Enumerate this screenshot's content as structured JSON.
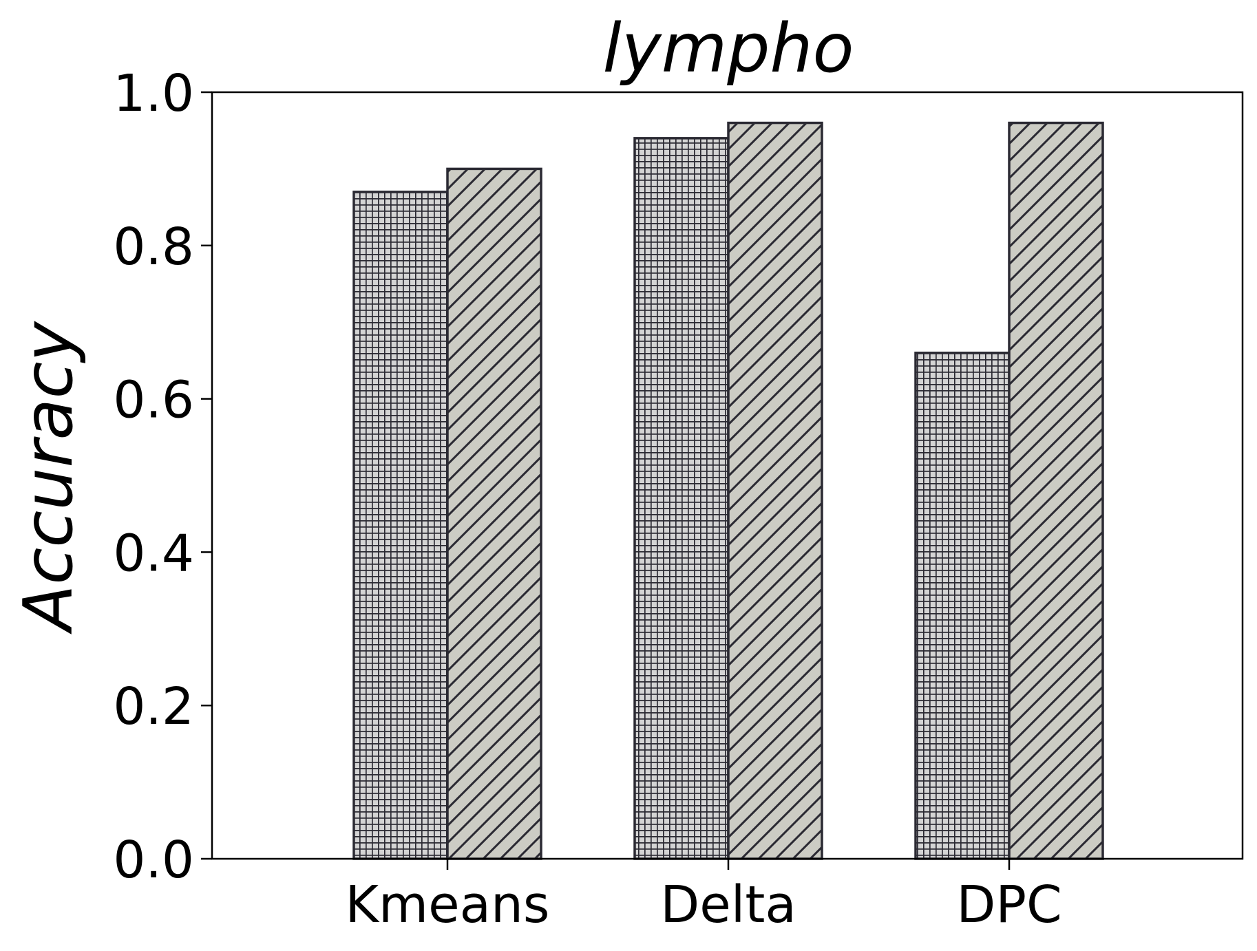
{
  "chart_data": {
    "type": "bar",
    "title": "lympho",
    "xlabel": "",
    "ylabel": "Accuracy",
    "ylim": [
      0.0,
      1.0
    ],
    "yticks": [
      "0.0",
      "0.2",
      "0.4",
      "0.6",
      "0.8",
      "1.0"
    ],
    "categories": [
      "Kmeans",
      "Delta",
      "DPC"
    ],
    "series": [
      {
        "values": [
          0.87,
          0.94,
          0.66
        ],
        "fill": "#d4d4d4",
        "hatch": "grid"
      },
      {
        "values": [
          0.9,
          0.96,
          0.96
        ],
        "fill": "#ccccc4",
        "hatch": "diagonal"
      }
    ],
    "edge_color": "#2b2a33",
    "grid": false,
    "legend": "none"
  }
}
